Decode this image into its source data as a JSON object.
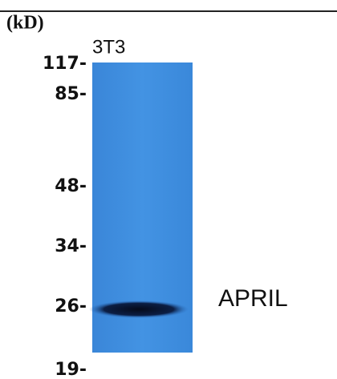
{
  "unit_label": "(kD)",
  "lane_label": "3T3",
  "markers": [
    "117-",
    "85-",
    "48-",
    "34-",
    "26-",
    "19-"
  ],
  "band_label": "APRIL"
}
